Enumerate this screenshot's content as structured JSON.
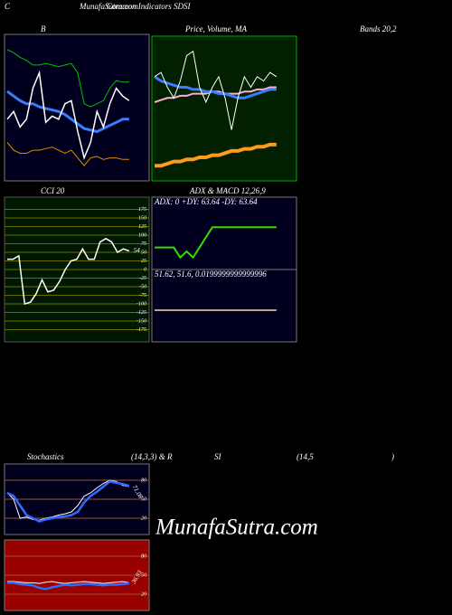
{
  "header": {
    "corner": "C",
    "site": "MunafaSutra.com",
    "title": "Common Indicators SDSI",
    "watermark": "MunafaSutra.com"
  },
  "chart_data": [
    {
      "type": "line",
      "title_parts": [
        "B",
        "Bands 20,2"
      ],
      "series": [
        {
          "color": "#00c000",
          "values": [
            95,
            93,
            90,
            88,
            85,
            85,
            86,
            85,
            84,
            85,
            86,
            80,
            60,
            58,
            60,
            62,
            70,
            75,
            74,
            74
          ]
        },
        {
          "color": "#3a7cff",
          "values": [
            68,
            65,
            62,
            60,
            60,
            58,
            57,
            56,
            55,
            53,
            50,
            47,
            44,
            43,
            42,
            44,
            46,
            48,
            50,
            50
          ]
        },
        {
          "color": "#ffffff",
          "values": [
            50,
            55,
            45,
            50,
            70,
            80,
            48,
            52,
            50,
            60,
            62,
            42,
            25,
            35,
            55,
            45,
            60,
            70,
            65,
            62
          ]
        },
        {
          "color": "#e08a00",
          "values": [
            35,
            30,
            28,
            28,
            30,
            30,
            31,
            32,
            30,
            28,
            30,
            25,
            20,
            25,
            26,
            24,
            25,
            25,
            24,
            24
          ]
        }
      ]
    },
    {
      "type": "line",
      "title_parts": [
        "Price, Volume, MA"
      ],
      "series": [
        {
          "color": "#ff9a1a",
          "values": [
            18,
            18,
            19,
            20,
            20,
            21,
            21,
            22,
            22,
            23,
            23,
            24,
            25,
            25,
            26,
            26,
            27,
            27,
            28,
            28
          ]
        },
        {
          "color": "#ffb0d0",
          "values": [
            48,
            49,
            50,
            50,
            51,
            51,
            52,
            52,
            52,
            53,
            53,
            52,
            52,
            52,
            53,
            53,
            54,
            54,
            55,
            55
          ]
        },
        {
          "color": "#3a7cff",
          "values": [
            60,
            58,
            57,
            56,
            55,
            55,
            54,
            54,
            53,
            53,
            52,
            52,
            51,
            50,
            50,
            51,
            52,
            53,
            54,
            54
          ]
        },
        {
          "color": "#ffffff",
          "values": [
            60,
            62,
            55,
            50,
            58,
            70,
            72,
            55,
            48,
            55,
            60,
            50,
            35,
            50,
            60,
            55,
            60,
            58,
            62,
            60
          ]
        }
      ]
    },
    {
      "type": "line",
      "title_parts": [
        "CCI 20"
      ],
      "ylim": [
        -200,
        200
      ],
      "yticks": [
        175,
        150,
        125,
        100,
        75,
        50,
        25,
        0,
        -25,
        -50,
        -75,
        -100,
        -125,
        -150,
        -175
      ],
      "grid": true,
      "grid_color": "#6b6b00",
      "series": [
        {
          "color": "#ffffff",
          "values": [
            30,
            30,
            40,
            -100,
            -95,
            -70,
            -30,
            -65,
            -60,
            -35,
            0,
            25,
            30,
            60,
            30,
            30,
            80,
            90,
            80,
            50,
            60,
            54
          ]
        }
      ]
    },
    {
      "type": "line",
      "title_parts": [
        "ADX  & MACD 12,26,9"
      ],
      "annotations": [
        "ADX: 0  +DY: 63.64  -DY: 63.64",
        "51.62, 51.6, 0.0199999999999996"
      ],
      "series": [
        {
          "color": "#33dd00",
          "values": [
            50,
            50,
            50,
            50,
            45,
            48,
            45,
            50,
            55,
            60,
            60,
            60,
            60,
            60,
            60,
            60,
            60,
            60,
            60,
            60
          ]
        },
        {
          "color": "#f5deb3",
          "axis": "y2",
          "values": [
            51.6,
            51.6,
            51.6,
            51.6,
            51.6,
            51.6,
            51.6,
            51.6,
            51.6,
            51.6,
            51.6,
            51.6,
            51.6,
            51.6,
            51.6,
            51.6,
            51.6,
            51.6,
            51.6,
            51.6
          ]
        }
      ]
    },
    {
      "type": "line",
      "title_parts": [
        "Stochastics",
        "(14,3,3) & R"
      ],
      "ylim": [
        0,
        100
      ],
      "yticks": [
        80,
        50,
        20
      ],
      "grid": true,
      "grid_color": "#a0522d",
      "series": [
        {
          "color": "#ffffff",
          "values": [
            60,
            50,
            20,
            22,
            18,
            17,
            20,
            22,
            25,
            27,
            30,
            40,
            55,
            60,
            68,
            75,
            80,
            78,
            72,
            70
          ]
        },
        {
          "color": "#2f6bff",
          "values": [
            60,
            55,
            40,
            25,
            20,
            15,
            18,
            20,
            22,
            23,
            25,
            30,
            45,
            55,
            62,
            70,
            78,
            76,
            74,
            71.08
          ]
        }
      ]
    },
    {
      "type": "line",
      "title_parts": [
        "SI",
        "(14,5",
        ")"
      ],
      "ylim": [
        0,
        100
      ],
      "yticks": [
        80,
        50,
        20
      ],
      "grid": true,
      "grid_color": "#a0522d",
      "series": [
        {
          "color": "#ffffff",
          "values": [
            40,
            40,
            39,
            38,
            38,
            37,
            39,
            40,
            38,
            37,
            38,
            39,
            40,
            39,
            38,
            37,
            38,
            39,
            40,
            38
          ]
        },
        {
          "color": "#2f6bff",
          "values": [
            38,
            38,
            36,
            35,
            34,
            30,
            28,
            31,
            33,
            35,
            34,
            35,
            36,
            36,
            35,
            34,
            35,
            35,
            36,
            36.93
          ]
        }
      ]
    }
  ]
}
